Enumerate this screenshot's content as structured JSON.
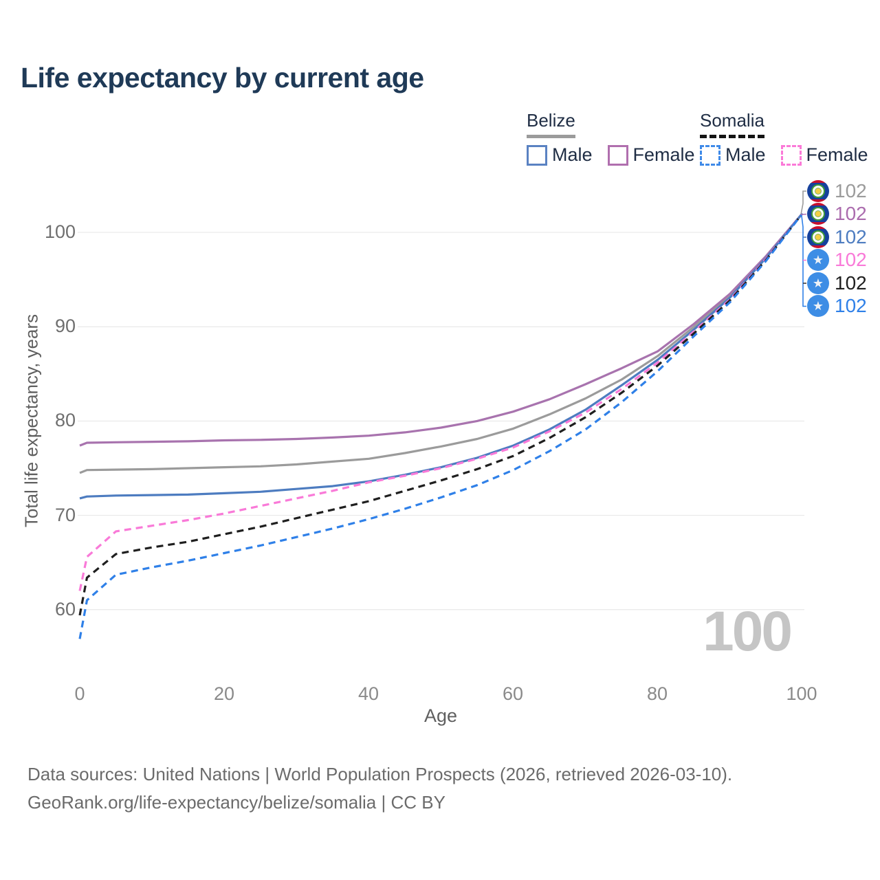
{
  "title": "Life expectancy by current age",
  "legend": {
    "belize": {
      "name": "Belize",
      "male": "Male",
      "female": "Female"
    },
    "somalia": {
      "name": "Somalia",
      "male": "Male",
      "female": "Female"
    }
  },
  "axes": {
    "y": {
      "title": "Total life expectancy, years",
      "ticks": [
        "100",
        "90",
        "80",
        "70",
        "60"
      ]
    },
    "x": {
      "title": "Age",
      "ticks": [
        "0",
        "20",
        "40",
        "60",
        "80",
        "100"
      ]
    }
  },
  "watermark": "100",
  "colors": {
    "title": "#1f3a57",
    "belize_all": "#9b9b9b",
    "belize_female": "#a873ae",
    "belize_male": "#4d7cc0",
    "somalia_female": "#f97ad8",
    "somalia_all": "#1f1f1f",
    "somalia_male": "#2f80e8",
    "legend_belize_male_box": "#5a82c2",
    "legend_belize_female_box": "#b06fae",
    "legend_somalia_male_box": "#3f8ae8",
    "legend_somalia_female_box": "#fb7ad8",
    "gridline": "#e4e4e4",
    "watermark": "#c5c5c5"
  },
  "end_labels": [
    {
      "value": "102",
      "series": "Belize all",
      "flag": "belize",
      "color": "#9b9b9b"
    },
    {
      "value": "102",
      "series": "Belize female",
      "flag": "belize",
      "color": "#ab6cae"
    },
    {
      "value": "102",
      "series": "Belize male",
      "flag": "belize",
      "color": "#4d7cc0"
    },
    {
      "value": "102",
      "series": "Somalia female",
      "flag": "somalia",
      "color": "#f97ad8"
    },
    {
      "value": "102",
      "series": "Somalia all",
      "flag": "somalia",
      "color": "#1f1f1f"
    },
    {
      "value": "102",
      "series": "Somalia male",
      "flag": "somalia",
      "color": "#2f80e8"
    }
  ],
  "footer": {
    "line1": "Data sources: United Nations | World Population Prospects (2026, retrieved 2026-03-10).",
    "line2": "GeoRank.org/life-expectancy/belize/somalia | CC BY"
  },
  "chart_data": {
    "type": "line",
    "title": "Life expectancy by current age",
    "xlabel": "Age",
    "ylabel": "Total life expectancy, years",
    "xlim": [
      0,
      100
    ],
    "ylim": [
      56,
      103
    ],
    "xticks": [
      0,
      20,
      40,
      60,
      80,
      100
    ],
    "yticks": [
      60,
      70,
      80,
      90,
      100
    ],
    "grid": "horizontal",
    "legend_position": "top-right",
    "ages": [
      0,
      1,
      5,
      10,
      15,
      20,
      25,
      30,
      35,
      40,
      45,
      50,
      55,
      60,
      65,
      70,
      75,
      80,
      85,
      90,
      95,
      100
    ],
    "series": [
      {
        "id": "belize-all",
        "name": "Belize",
        "sex": "all",
        "style": "solid",
        "color": "#9b9b9b",
        "values": [
          74.5,
          74.8,
          74.85,
          74.9,
          75.0,
          75.1,
          75.2,
          75.4,
          75.7,
          76.0,
          76.6,
          77.3,
          78.1,
          79.2,
          80.7,
          82.4,
          84.4,
          86.9,
          90.0,
          93.3,
          97.4,
          102
        ]
      },
      {
        "id": "belize-female",
        "name": "Belize Female",
        "sex": "female",
        "style": "solid",
        "color": "#a873ae",
        "values": [
          77.4,
          77.7,
          77.75,
          77.8,
          77.85,
          77.95,
          78.0,
          78.1,
          78.25,
          78.45,
          78.8,
          79.3,
          80.0,
          81.0,
          82.3,
          83.9,
          85.6,
          87.4,
          90.3,
          93.5,
          97.5,
          102
        ]
      },
      {
        "id": "belize-male",
        "name": "Belize Male",
        "sex": "male",
        "style": "solid",
        "color": "#4d7cc0",
        "values": [
          71.8,
          72.0,
          72.1,
          72.15,
          72.2,
          72.35,
          72.5,
          72.8,
          73.1,
          73.6,
          74.3,
          75.1,
          76.1,
          77.4,
          79.1,
          81.2,
          83.8,
          86.5,
          89.7,
          93.1,
          97.3,
          102
        ]
      },
      {
        "id": "somalia-female",
        "name": "Somalia Female",
        "sex": "female",
        "style": "dashed",
        "color": "#f97ad8",
        "values": [
          62.0,
          65.6,
          68.3,
          68.9,
          69.5,
          70.2,
          71.0,
          71.8,
          72.6,
          73.5,
          74.2,
          75.0,
          76.0,
          77.2,
          78.9,
          80.9,
          83.4,
          86.2,
          89.5,
          92.9,
          97.2,
          102
        ]
      },
      {
        "id": "somalia-all",
        "name": "Somalia",
        "sex": "all",
        "style": "dashed",
        "color": "#1f1f1f",
        "values": [
          59.4,
          63.4,
          65.9,
          66.6,
          67.2,
          68.0,
          68.8,
          69.7,
          70.6,
          71.5,
          72.6,
          73.7,
          74.9,
          76.3,
          78.2,
          80.4,
          83.0,
          85.9,
          89.3,
          92.8,
          97.1,
          102
        ]
      },
      {
        "id": "somalia-male",
        "name": "Somalia Male",
        "sex": "male",
        "style": "dashed",
        "color": "#2f80e8",
        "values": [
          56.9,
          61.0,
          63.7,
          64.5,
          65.2,
          66.0,
          66.8,
          67.7,
          68.6,
          69.6,
          70.7,
          71.9,
          73.2,
          74.8,
          76.8,
          79.1,
          82.0,
          85.3,
          89.0,
          92.6,
          97.0,
          102
        ]
      }
    ],
    "end_value": 102
  }
}
